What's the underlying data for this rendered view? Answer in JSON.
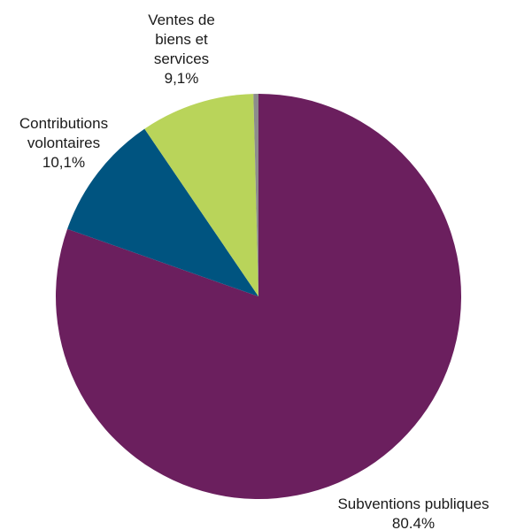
{
  "chart_data": {
    "type": "pie",
    "title": "",
    "slices": [
      {
        "key": "subventions",
        "name": "Subventions publiques",
        "value": 80.4,
        "percent_label": "80.4%",
        "label_lines": [
          "Subventions publiques"
        ],
        "color": "#6b1f5e"
      },
      {
        "key": "contributions",
        "name": "Contributions volontaires",
        "value": 10.1,
        "percent_label": "10,1%",
        "label_lines": [
          "Contributions",
          "volontaires"
        ],
        "color": "#005480"
      },
      {
        "key": "ventes",
        "name": "Ventes de biens et services",
        "value": 9.1,
        "percent_label": "9,1%",
        "label_lines": [
          "Ventes de",
          "biens et",
          "services"
        ],
        "color": "#b9d45a"
      },
      {
        "key": "autre",
        "name": "",
        "value": 0.4,
        "percent_label": "",
        "label_lines": [],
        "color": "#8c8c8c"
      }
    ]
  }
}
